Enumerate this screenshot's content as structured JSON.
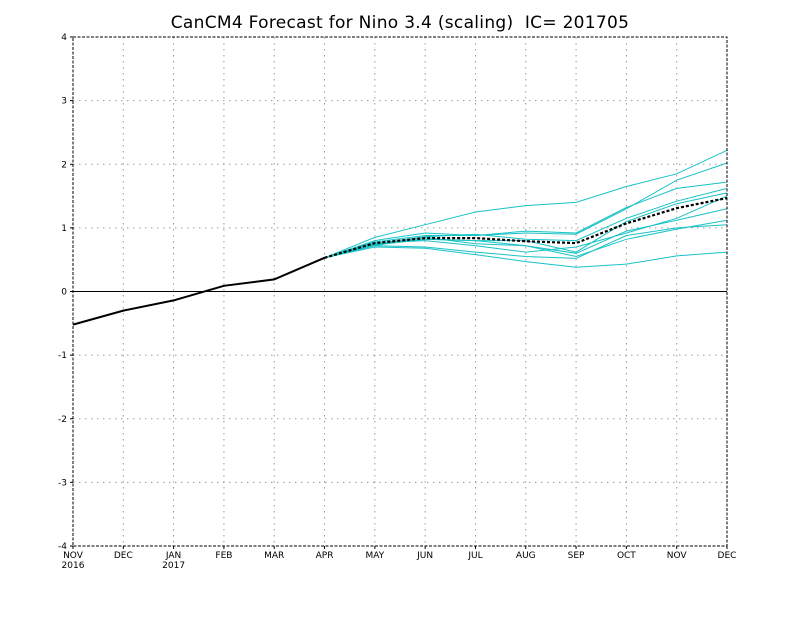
{
  "chart_data": {
    "type": "line",
    "title": "CanCM4 Forecast for Nino 3.4 (scaling)  IC= 201705",
    "xlabel": "",
    "ylabel": "",
    "ylim": [
      -4,
      4
    ],
    "yticks": [
      4,
      3,
      2,
      1,
      0,
      -1,
      -2,
      -3,
      -4
    ],
    "categories": [
      "NOV",
      "DEC",
      "JAN",
      "FEB",
      "MAR",
      "APR",
      "MAY",
      "JUN",
      "JUL",
      "AUG",
      "SEP",
      "OCT",
      "NOV",
      "DEC"
    ],
    "year_labels": [
      {
        "index": 0,
        "label": "2016"
      },
      {
        "index": 2,
        "label": "2017"
      }
    ],
    "grid": true,
    "zero_line": true,
    "observed": {
      "color": "#000000",
      "values": [
        -0.52,
        -0.3,
        -0.14,
        0.09,
        0.19,
        0.53
      ]
    },
    "members": {
      "color": "#19c2c6",
      "start_index": 5,
      "series": [
        [
          0.53,
          0.85,
          1.05,
          1.25,
          1.35,
          1.4,
          1.65,
          1.85,
          2.22
        ],
        [
          0.53,
          0.78,
          0.88,
          0.88,
          0.92,
          0.9,
          1.3,
          1.75,
          2.02
        ],
        [
          0.53,
          0.8,
          0.92,
          0.88,
          0.95,
          0.92,
          1.32,
          1.62,
          1.72
        ],
        [
          0.53,
          0.75,
          0.86,
          0.9,
          0.82,
          0.8,
          1.15,
          1.42,
          1.62
        ],
        [
          0.53,
          0.74,
          0.82,
          0.8,
          0.8,
          0.62,
          1.1,
          1.38,
          1.55
        ],
        [
          0.53,
          0.72,
          0.85,
          0.75,
          0.72,
          0.6,
          0.95,
          1.12,
          1.3
        ],
        [
          0.53,
          0.76,
          0.8,
          0.72,
          0.62,
          0.7,
          0.92,
          1.15,
          1.5
        ],
        [
          0.53,
          0.73,
          0.82,
          0.8,
          0.72,
          0.55,
          0.82,
          0.98,
          1.12
        ],
        [
          0.53,
          0.72,
          0.7,
          0.62,
          0.55,
          0.52,
          0.88,
          1.0,
          1.05
        ],
        [
          0.53,
          0.7,
          0.68,
          0.58,
          0.47,
          0.38,
          0.43,
          0.56,
          0.62
        ]
      ]
    },
    "ensemble_mean": {
      "color": "#000000",
      "start_index": 5,
      "values": [
        0.53,
        0.76,
        0.84,
        0.84,
        0.79,
        0.76,
        1.07,
        1.31,
        1.47
      ]
    }
  }
}
